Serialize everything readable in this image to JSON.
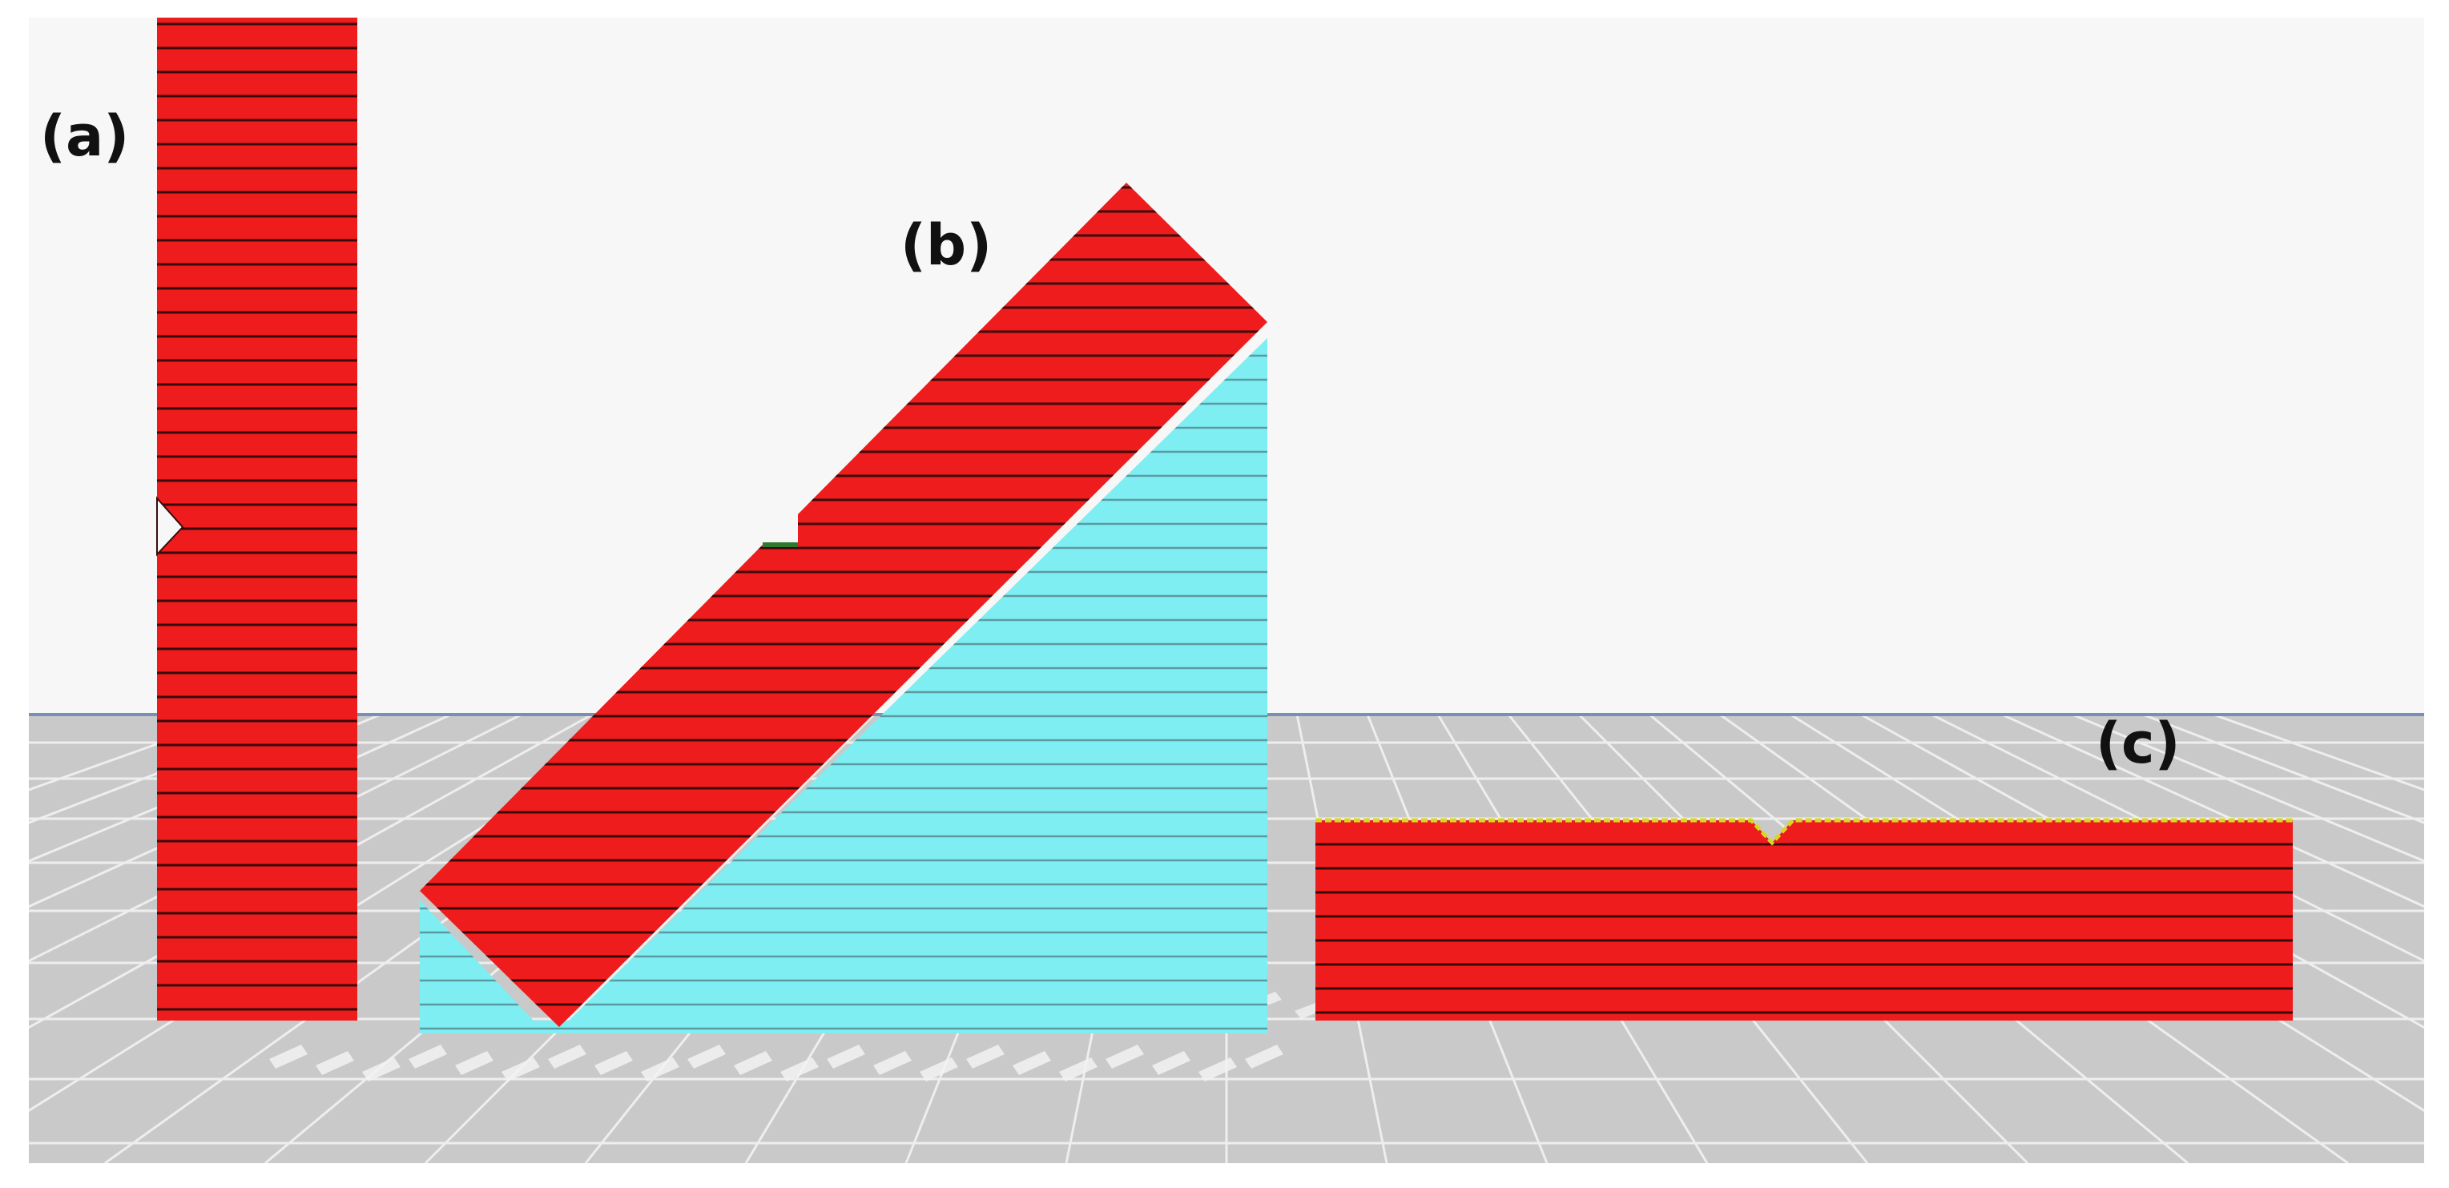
{
  "scene": {
    "labels": {
      "a": "(a)",
      "b": "(b)",
      "c": "(c)"
    },
    "objects": {
      "a": {
        "kind": "vertical-printed-specimen"
      },
      "b": {
        "kind": "inclined-printed-specimen-with-support"
      },
      "c": {
        "kind": "flat-printed-specimen"
      }
    }
  },
  "colors": {
    "background": "#f7f7f7",
    "build_plate": "#c9c9c9",
    "build_plate_grid": "#eeeeee",
    "horizon": "#7a8fb5",
    "part_fill": "#ee1c1c",
    "part_layer_line": "#3a0a0a",
    "support_fill": "#7feef2",
    "support_layer_line": "#5a9aa0",
    "top_skin": "#d8d820",
    "label_text": "#111111"
  }
}
